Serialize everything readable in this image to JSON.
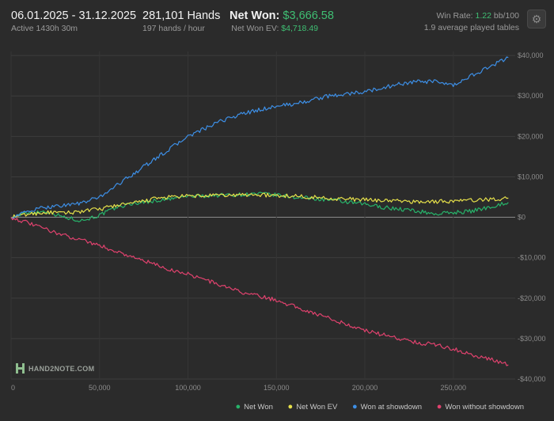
{
  "header": {
    "date_range": "06.01.2025 - 31.12.2025",
    "active": "Active 1430h 30m",
    "hands": "281,101 Hands",
    "hands_per_hour": "197 hands / hour",
    "net_won_label": "Net Won:",
    "net_won_value": "$3,666.58",
    "net_won_ev_label": "Net Won  EV:",
    "net_won_ev_value": "$4,718.49",
    "win_rate_label": "Win Rate:",
    "win_rate_value": "1.22",
    "win_rate_unit": "bb/100",
    "tables": "1.9 average played tables"
  },
  "icons": {
    "settings": "gear-icon",
    "logo": "hand2note-logo"
  },
  "logo_text": "HAND2NOTE.COM",
  "colors": {
    "background": "#2b2b2b",
    "net_won": "#27b36a",
    "net_won_ev": "#e6e04a",
    "won_at_showdown": "#3d8fe6",
    "won_without_showdown": "#e0426e"
  },
  "chart_data": {
    "type": "line",
    "xlabel": "",
    "ylabel": "",
    "xlim": [
      0,
      285000
    ],
    "ylim": [
      -40000,
      41000
    ],
    "x_ticks": [
      "0",
      "50,000",
      "100,000",
      "150,000",
      "200,000",
      "250,000"
    ],
    "x_tick_values": [
      0,
      50000,
      100000,
      150000,
      200000,
      250000
    ],
    "y_ticks": [
      "$40,000",
      "$30,000",
      "$20,000",
      "$10,000",
      "$0",
      "-$10,000",
      "-$20,000",
      "-$30,000",
      "-$40,000"
    ],
    "y_tick_values": [
      40000,
      30000,
      20000,
      10000,
      0,
      -10000,
      -20000,
      -30000,
      -40000
    ],
    "grid": true,
    "legend_position": "bottom-right",
    "x": [
      0,
      10000,
      20000,
      30000,
      40000,
      50000,
      60000,
      70000,
      80000,
      90000,
      100000,
      110000,
      120000,
      130000,
      140000,
      150000,
      160000,
      170000,
      180000,
      190000,
      200000,
      210000,
      220000,
      230000,
      240000,
      250000,
      260000,
      270000,
      281101
    ],
    "series": [
      {
        "name": "Net Won",
        "color": "#27b36a",
        "values": [
          0,
          1200,
          1500,
          0,
          -800,
          500,
          2500,
          3500,
          4000,
          4500,
          5200,
          5300,
          5500,
          5600,
          5800,
          5500,
          5000,
          4700,
          4300,
          3700,
          3200,
          2500,
          2000,
          1500,
          800,
          1200,
          1500,
          2500,
          3666
        ]
      },
      {
        "name": "Net Won  EV",
        "color": "#e6e04a",
        "values": [
          0,
          800,
          1200,
          1000,
          1500,
          2000,
          3000,
          3500,
          4500,
          5000,
          5200,
          5300,
          5400,
          5500,
          5600,
          5300,
          5300,
          5000,
          4700,
          4500,
          4300,
          4200,
          4000,
          3800,
          3900,
          4000,
          4200,
          4400,
          4718
        ]
      },
      {
        "name": "Won at showdown",
        "color": "#3d8fe6",
        "values": [
          0,
          1500,
          2500,
          3000,
          3500,
          5000,
          8000,
          11000,
          14000,
          17000,
          20000,
          22000,
          24000,
          25500,
          26500,
          27500,
          28000,
          29000,
          30000,
          30500,
          31000,
          32000,
          33000,
          33500,
          33500,
          32500,
          35000,
          37000,
          39500
        ]
      },
      {
        "name": "Won without showdown",
        "color": "#e0426e",
        "values": [
          0,
          -1500,
          -3000,
          -4500,
          -5500,
          -7000,
          -8500,
          -10000,
          -11500,
          -13000,
          -14000,
          -15500,
          -17000,
          -18500,
          -19500,
          -20500,
          -22000,
          -23500,
          -25000,
          -26500,
          -28000,
          -29000,
          -30000,
          -31000,
          -31500,
          -32500,
          -34000,
          -35000,
          -36500
        ]
      }
    ]
  }
}
